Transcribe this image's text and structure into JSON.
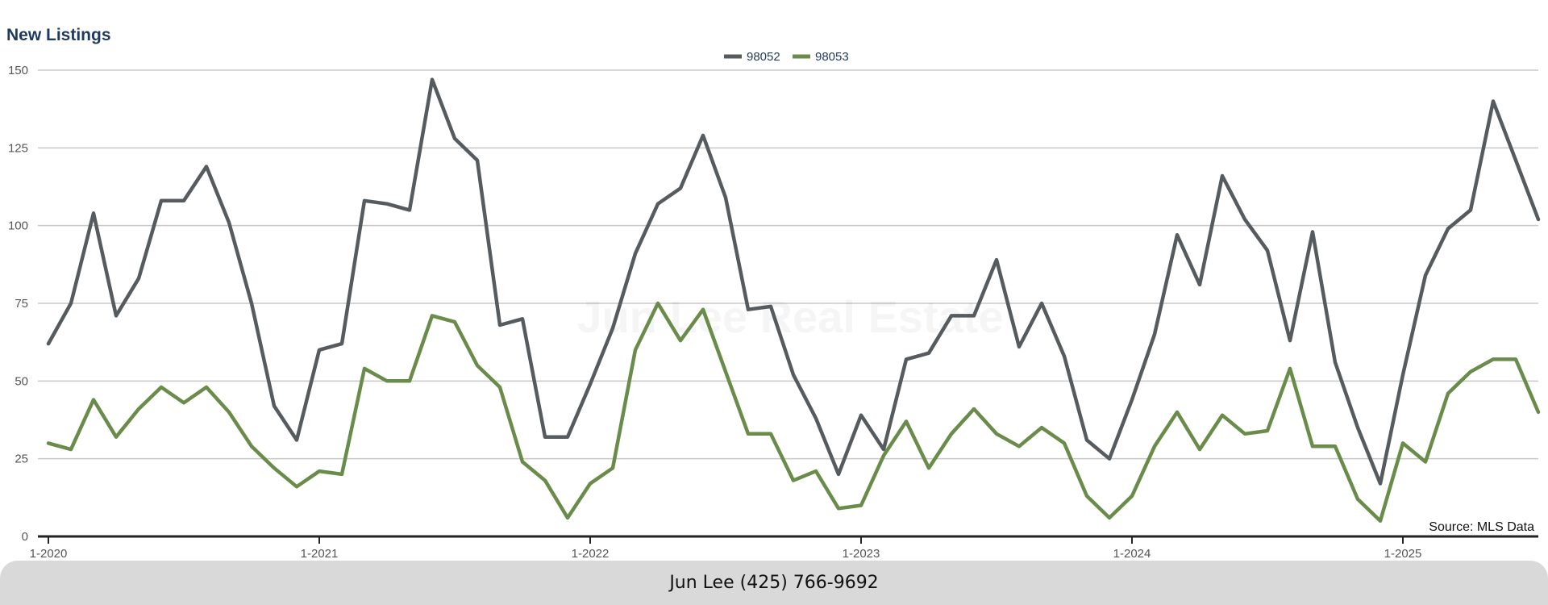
{
  "chart_data": {
    "type": "line",
    "title": "New Listings",
    "xlabel": "",
    "ylabel": "",
    "ylim": [
      0,
      150
    ],
    "yticks": [
      0,
      25,
      50,
      75,
      100,
      125,
      150
    ],
    "xtick_labels": [
      "1-2020",
      "1-2021",
      "1-2022",
      "1-2023",
      "1-2024",
      "1-2025"
    ],
    "xtick_months": [
      "2020-01",
      "2021-01",
      "2022-01",
      "2023-01",
      "2024-01",
      "2025-01"
    ],
    "x_start": "2020-01",
    "x_end": "2025-07",
    "grid": true,
    "legend_position": "top-center",
    "series": [
      {
        "name": "98052",
        "color": "#555b5e",
        "values": [
          62,
          75,
          104,
          71,
          83,
          108,
          108,
          119,
          101,
          75,
          42,
          31,
          60,
          62,
          108,
          107,
          105,
          147,
          128,
          121,
          68,
          70,
          32,
          32,
          49,
          67,
          91,
          107,
          112,
          129,
          109,
          73,
          74,
          52,
          38,
          20,
          39,
          28,
          57,
          59,
          71,
          71,
          89,
          61,
          75,
          58,
          31,
          25,
          44,
          65,
          97,
          81,
          116,
          102,
          92,
          63,
          98,
          56,
          35,
          17,
          52,
          84,
          99,
          105,
          140,
          121,
          102
        ]
      },
      {
        "name": "98053",
        "color": "#6a8c4a",
        "values": [
          30,
          28,
          44,
          32,
          41,
          48,
          43,
          48,
          40,
          29,
          22,
          16,
          21,
          20,
          54,
          50,
          50,
          71,
          69,
          55,
          48,
          24,
          18,
          6,
          17,
          22,
          60,
          75,
          63,
          73,
          53,
          33,
          33,
          18,
          21,
          9,
          10,
          26,
          37,
          22,
          33,
          41,
          33,
          29,
          35,
          30,
          13,
          6,
          13,
          29,
          40,
          28,
          39,
          33,
          34,
          54,
          29,
          29,
          12,
          5,
          30,
          24,
          46,
          53,
          57,
          57,
          40
        ]
      }
    ],
    "watermark": "Jun Lee Real Estate",
    "source": "Source: MLS Data"
  },
  "footer": {
    "contact": "Jun Lee (425) 766-9692"
  }
}
